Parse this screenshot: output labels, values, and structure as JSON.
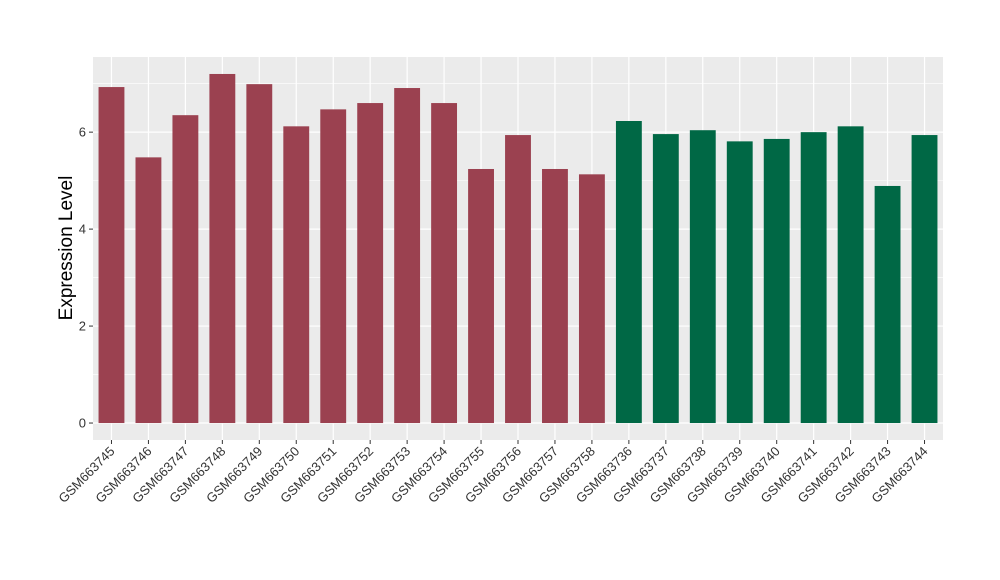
{
  "chart_data": {
    "type": "bar",
    "title": "",
    "xlabel": "",
    "ylabel": "Expression Level",
    "ylim": [
      -0.35,
      7.55
    ],
    "yticks": [
      0,
      2,
      4,
      6
    ],
    "grid": true,
    "legend": "none",
    "categories": [
      "GSM663745",
      "GSM663746",
      "GSM663747",
      "GSM663748",
      "GSM663749",
      "GSM663750",
      "GSM663751",
      "GSM663752",
      "GSM663753",
      "GSM663754",
      "GSM663755",
      "GSM663756",
      "GSM663757",
      "GSM663758",
      "GSM663736",
      "GSM663737",
      "GSM663738",
      "GSM663739",
      "GSM663740",
      "GSM663741",
      "GSM663742",
      "GSM663743",
      "GSM663744"
    ],
    "values": [
      6.93,
      5.48,
      6.35,
      7.2,
      6.99,
      6.12,
      6.47,
      6.6,
      6.91,
      6.6,
      5.24,
      5.94,
      5.24,
      5.13,
      6.23,
      5.96,
      6.04,
      5.81,
      5.86,
      6.0,
      6.12,
      4.89,
      5.94
    ],
    "groups": [
      0,
      0,
      0,
      0,
      0,
      0,
      0,
      0,
      0,
      0,
      0,
      0,
      0,
      0,
      1,
      1,
      1,
      1,
      1,
      1,
      1,
      1,
      1
    ],
    "colors": [
      "#9B4150",
      "#006845"
    ],
    "panel_background": "#EBEBEB",
    "grid_color": "#FFFFFF"
  }
}
